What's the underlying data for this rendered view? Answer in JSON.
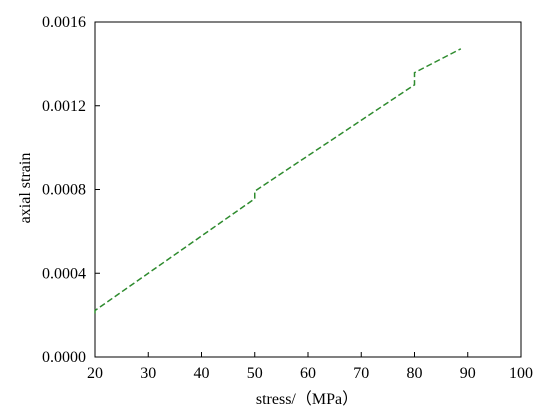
{
  "chart_data": {
    "type": "line",
    "title": "",
    "xlabel": "stress/（MPa）",
    "ylabel": "axial strain",
    "xlim": [
      20,
      100
    ],
    "ylim": [
      0,
      0.0016
    ],
    "x_ticks": [
      20,
      30,
      40,
      50,
      60,
      70,
      80,
      90,
      100
    ],
    "x_tick_labels": [
      "20",
      "30",
      "40",
      "50",
      "60",
      "70",
      "80",
      "90",
      "100"
    ],
    "y_ticks": [
      0,
      0.0004,
      0.0008,
      0.0012,
      0.0016
    ],
    "y_tick_labels": [
      "0.0000",
      "0.0004",
      "0.0008",
      "0.0012",
      "0.0016"
    ],
    "grid": false,
    "legend": "none",
    "series": [
      {
        "color": "#2e8b2e",
        "line_style": "dashed",
        "x": [
          20,
          20,
          50,
          50,
          80,
          80,
          88.7
        ],
        "y": [
          0.000208,
          0.000222,
          0.000756,
          0.000792,
          0.0013,
          0.001358,
          0.001472
        ]
      }
    ]
  }
}
